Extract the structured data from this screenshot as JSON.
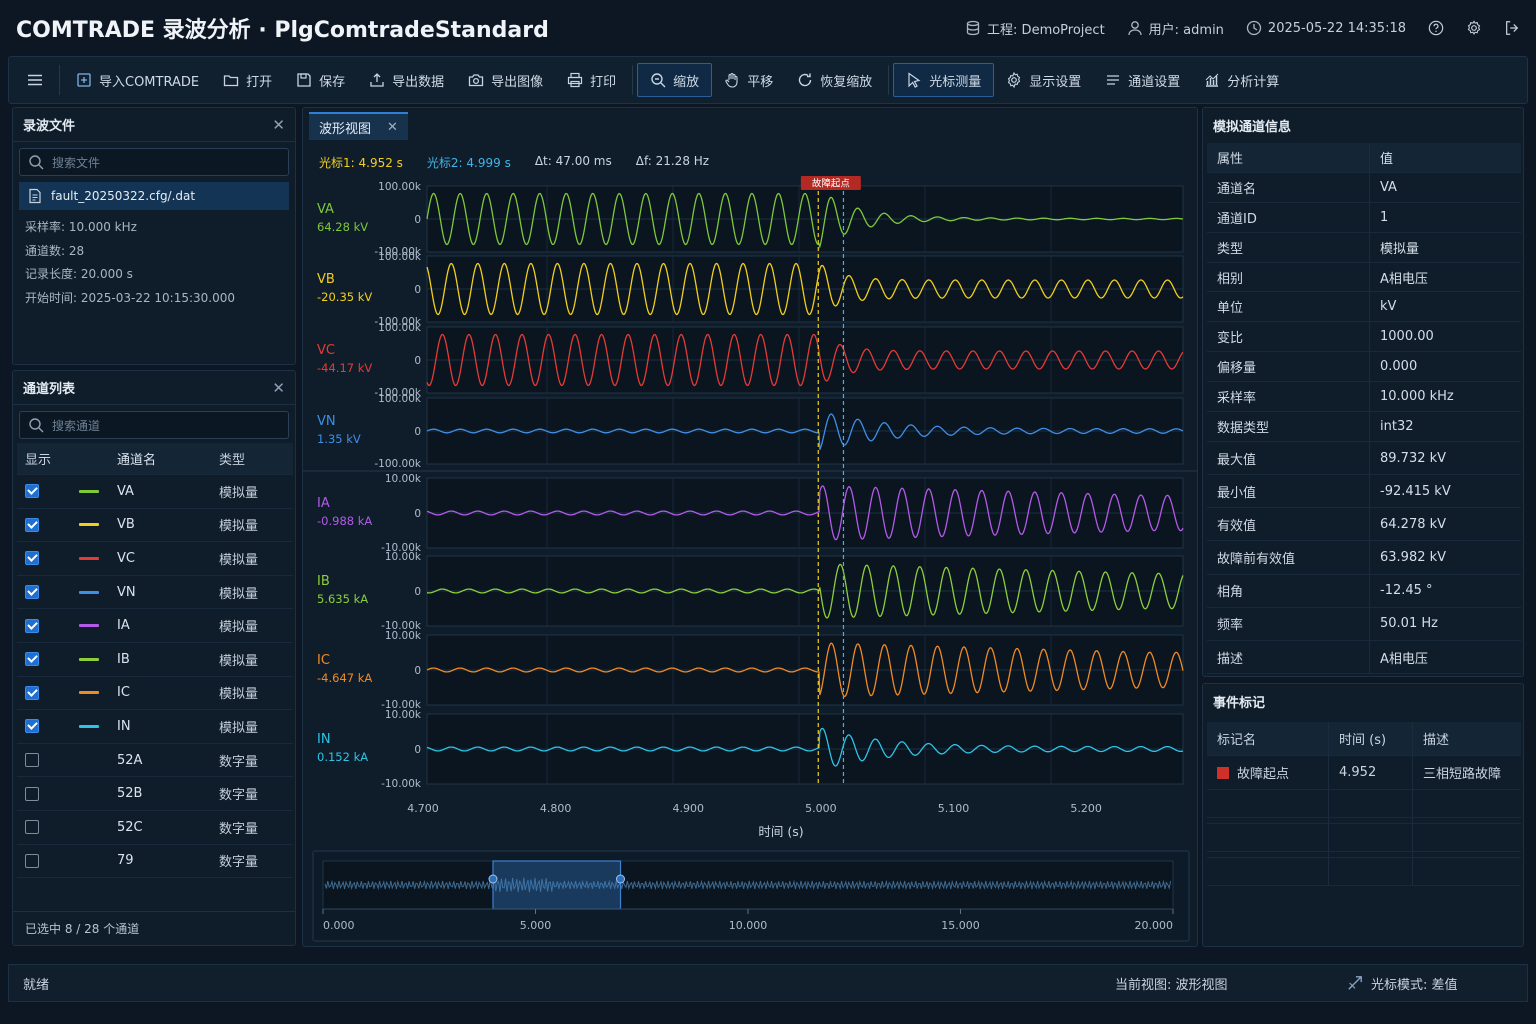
{
  "app": {
    "title": "COMTRADE 录波分析 · PlgComtradeStandard",
    "project_label": "工程: DemoProject",
    "user_label": "用户: admin",
    "datetime": "2025-05-22 14:35:18"
  },
  "toolbar": {
    "import": "导入COMTRADE",
    "open": "打开",
    "save": "保存",
    "export_data": "导出数据",
    "export_image": "导出图像",
    "print": "打印",
    "zoom": "缩放",
    "pan": "平移",
    "reset_zoom": "恢复缩放",
    "cursor_measure": "光标测量",
    "display_settings": "显示设置",
    "channel_settings": "通道设置",
    "analysis": "分析计算"
  },
  "files_panel": {
    "title": "录波文件",
    "search_placeholder": "搜索文件",
    "file_name": "fault_20250322.cfg/.dat",
    "sample_rate": "采样率: 10.000 kHz",
    "channel_count": "通道数: 28",
    "record_length": "记录长度: 20.000 s",
    "start_time": "开始时间: 2025-03-22 10:15:30.000"
  },
  "channel_panel": {
    "title": "通道列表",
    "search_placeholder": "搜索通道",
    "col_show": "显示",
    "col_name": "通道名",
    "col_type": "类型",
    "rows": [
      {
        "name": "VA",
        "type": "模拟量",
        "checked": true,
        "color": "#7ec83a"
      },
      {
        "name": "VB",
        "type": "模拟量",
        "checked": true,
        "color": "#f2cf1d"
      },
      {
        "name": "VC",
        "type": "模拟量",
        "checked": true,
        "color": "#e53b35"
      },
      {
        "name": "VN",
        "type": "模拟量",
        "checked": true,
        "color": "#3f8fe6"
      },
      {
        "name": "IA",
        "type": "模拟量",
        "checked": true,
        "color": "#b35ae8"
      },
      {
        "name": "IB",
        "type": "模拟量",
        "checked": true,
        "color": "#8ccf3a"
      },
      {
        "name": "IC",
        "type": "模拟量",
        "checked": true,
        "color": "#f08a24"
      },
      {
        "name": "IN",
        "type": "模拟量",
        "checked": true,
        "color": "#2ec4e6"
      },
      {
        "name": "52A",
        "type": "数字量",
        "checked": false,
        "color": ""
      },
      {
        "name": "52B",
        "type": "数字量",
        "checked": false,
        "color": ""
      },
      {
        "name": "52C",
        "type": "数字量",
        "checked": false,
        "color": ""
      },
      {
        "name": "79",
        "type": "数字量",
        "checked": false,
        "color": ""
      }
    ],
    "footer": "已选中 8 / 28 个通道"
  },
  "waveform": {
    "tab_label": "波形视图",
    "cursor1": "光标1: 4.952 s",
    "cursor2": "光标2: 4.999 s",
    "dt": "Δt: 47.00 ms",
    "df": "Δf: 21.28 Hz",
    "fault_label": "故障起点",
    "xlabel": "时间 (s)",
    "xticks": [
      "4.700",
      "4.800",
      "4.900",
      "5.000",
      "5.100",
      "5.200"
    ],
    "channels": [
      {
        "name": "VA",
        "value": "64.28 kV",
        "color": "#7ec83a",
        "ymax": "100.00k",
        "ymid": "0",
        "ymin": "-100.00k",
        "pre_amp": 0.85,
        "post": "decay",
        "post_amp": 0.2
      },
      {
        "name": "VB",
        "value": "-20.35 kV",
        "color": "#f2cf1d",
        "ymax": "100.00k",
        "ymid": "0",
        "ymin": "-100.00k",
        "pre_amp": 0.85,
        "post": "steady",
        "post_amp": 0.3
      },
      {
        "name": "VC",
        "value": "-44.17 kV",
        "color": "#e53b35",
        "ymax": "100.00k",
        "ymid": "0",
        "ymin": "-100.00k",
        "pre_amp": 0.85,
        "post": "steady",
        "post_amp": 0.3
      },
      {
        "name": "VN",
        "value": "1.35 kV",
        "color": "#3f8fe6",
        "ymax": "100.00k",
        "ymid": "0",
        "ymin": "-100.00k",
        "pre_amp": 0.06,
        "post": "burst",
        "post_amp": 0.6
      },
      {
        "name": "IA",
        "value": "-0.988 kA",
        "color": "#b35ae8",
        "ymax": "10.00k",
        "ymid": "0",
        "ymin": "-10.00k",
        "pre_amp": 0.06,
        "post": "grow",
        "post_amp": 0.85
      },
      {
        "name": "IB",
        "value": "5.635 kA",
        "color": "#8ccf3a",
        "ymax": "10.00k",
        "ymid": "0",
        "ymin": "-10.00k",
        "pre_amp": 0.06,
        "post": "grow",
        "post_amp": 0.85
      },
      {
        "name": "IC",
        "value": "-4.647 kA",
        "color": "#f08a24",
        "ymax": "10.00k",
        "ymid": "0",
        "ymin": "-10.00k",
        "pre_amp": 0.06,
        "post": "grow",
        "post_amp": 0.85
      },
      {
        "name": "IN",
        "value": "0.152 kA",
        "color": "#2ec4e6",
        "ymax": "10.00k",
        "ymid": "0",
        "ymin": "-10.00k",
        "pre_amp": 0.06,
        "post": "burst",
        "post_amp": 0.6
      }
    ],
    "overview_ticks": [
      "0.000",
      "5.000",
      "10.000",
      "15.000",
      "20.000"
    ]
  },
  "channel_info": {
    "title": "模拟通道信息",
    "col_prop": "属性",
    "col_val": "值",
    "rows": [
      {
        "k": "通道名",
        "v": "VA"
      },
      {
        "k": "通道ID",
        "v": "1"
      },
      {
        "k": "类型",
        "v": "模拟量"
      },
      {
        "k": "相别",
        "v": "A相电压"
      },
      {
        "k": "单位",
        "v": "kV"
      },
      {
        "k": "变比",
        "v": "1000.00"
      },
      {
        "k": "偏移量",
        "v": "0.000"
      },
      {
        "k": "采样率",
        "v": "10.000 kHz"
      },
      {
        "k": "数据类型",
        "v": "int32"
      },
      {
        "k": "最大值",
        "v": "89.732 kV"
      },
      {
        "k": "最小值",
        "v": "-92.415 kV"
      },
      {
        "k": "有效值",
        "v": "64.278 kV"
      },
      {
        "k": "故障前有效值",
        "v": "63.982 kV"
      },
      {
        "k": "相角",
        "v": "-12.45 °"
      },
      {
        "k": "频率",
        "v": "50.01 Hz"
      },
      {
        "k": "描述",
        "v": "A相电压"
      }
    ]
  },
  "events": {
    "title": "事件标记",
    "col_name": "标记名",
    "col_time": "时间 (s)",
    "col_desc": "描述",
    "rows": [
      {
        "name": "故障起点",
        "time": "4.952",
        "desc": "三相短路故障",
        "color": "#d0302a"
      }
    ]
  },
  "status": {
    "left": "就绪",
    "view": "当前视图: 波形视图",
    "cursor_mode": "光标模式: 差值"
  }
}
